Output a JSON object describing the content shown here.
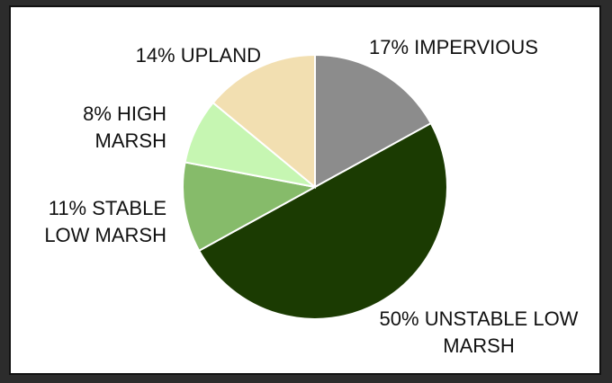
{
  "chart_data": {
    "type": "pie",
    "categories": [
      "IMPERVIOUS",
      "UNSTABLE LOW MARSH",
      "STABLE LOW MARSH",
      "HIGH MARSH",
      "UPLAND"
    ],
    "values": [
      17,
      50,
      11,
      8,
      14
    ],
    "value_labels": [
      "17%",
      "50%",
      "11%",
      "8%",
      "14%"
    ],
    "colors": [
      "#8c8c8c",
      "#1b3b02",
      "#86bb6a",
      "#c6f6b2",
      "#f2dfb1"
    ]
  }
}
